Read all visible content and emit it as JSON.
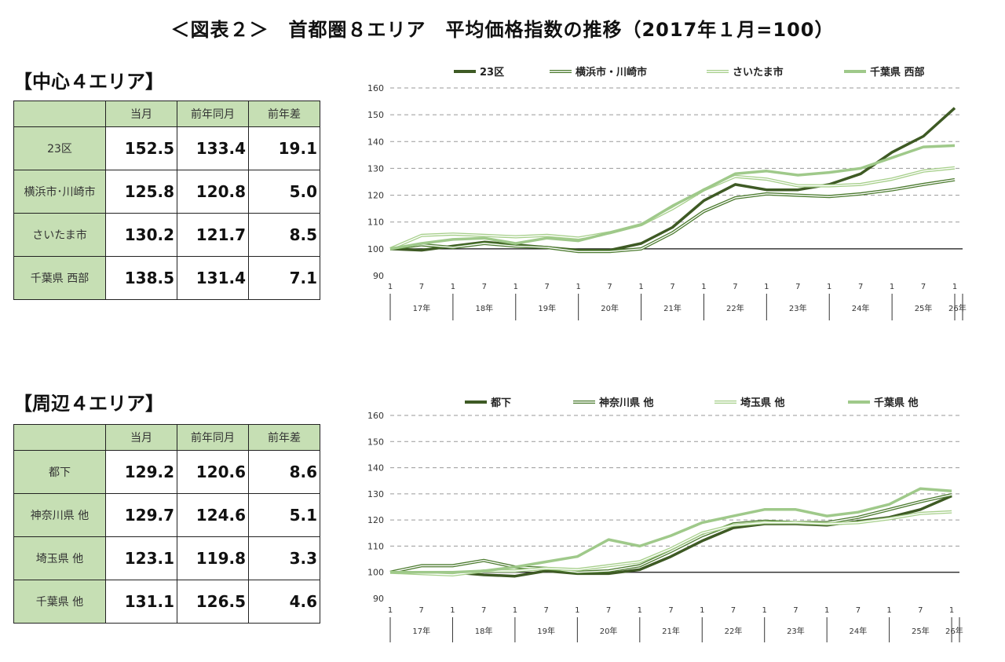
{
  "page": {
    "title": "＜図表２＞　首都圏８エリア　平均価格指数の推移（2017年１月=100）"
  },
  "tables": [
    {
      "heading": "【中心４エリア】",
      "columns": [
        "当月",
        "前年同月",
        "前年差"
      ],
      "rows": [
        {
          "label": "23区",
          "values": [
            "152.5",
            "133.4",
            "19.1"
          ]
        },
        {
          "label": "横浜市･川崎市",
          "values": [
            "125.8",
            "120.8",
            "5.0"
          ]
        },
        {
          "label": "さいたま市",
          "values": [
            "130.2",
            "121.7",
            "8.5"
          ]
        },
        {
          "label": "千葉県 西部",
          "values": [
            "138.5",
            "131.4",
            "7.1"
          ]
        }
      ]
    },
    {
      "heading": "【周辺４エリア】",
      "columns": [
        "当月",
        "前年同月",
        "前年差"
      ],
      "rows": [
        {
          "label": "都下",
          "values": [
            "129.2",
            "120.6",
            "8.6"
          ]
        },
        {
          "label": "神奈川県 他",
          "values": [
            "129.7",
            "124.6",
            "5.1"
          ]
        },
        {
          "label": "埼玉県 他",
          "values": [
            "123.1",
            "119.8",
            "3.3"
          ]
        },
        {
          "label": "千葉県 他",
          "values": [
            "131.1",
            "126.5",
            "4.6"
          ]
        }
      ]
    }
  ],
  "chart_data": [
    {
      "type": "line",
      "title": "",
      "xlabel": "",
      "ylabel": "",
      "ylim": [
        90,
        160
      ],
      "yticks": [
        90,
        100,
        110,
        120,
        130,
        140,
        150,
        160
      ],
      "grid": "horizontal dashed",
      "reference_line": 100,
      "legend_position": "top",
      "x_month_ticks": [
        "1",
        "7"
      ],
      "x_last_tick": "1",
      "x_years": [
        "17年",
        "18年",
        "19年",
        "20年",
        "21年",
        "22年",
        "23年",
        "24年",
        "25年",
        "26年"
      ],
      "x": [
        "2017-01",
        "2017-07",
        "2018-01",
        "2018-07",
        "2019-01",
        "2019-07",
        "2020-01",
        "2020-07",
        "2021-01",
        "2021-07",
        "2022-01",
        "2022-07",
        "2023-01",
        "2023-07",
        "2024-01",
        "2024-07",
        "2025-01",
        "2025-07",
        "2026-01"
      ],
      "series": [
        {
          "name": "23区",
          "style": "thick",
          "color": "#3e5a24",
          "values": [
            100,
            99.5,
            101,
            102.5,
            101.5,
            100.5,
            99.5,
            99.5,
            102,
            108,
            118,
            124,
            122,
            122,
            124,
            128,
            136,
            142,
            152.5
          ]
        },
        {
          "name": "横浜市・川崎市",
          "style": "double",
          "color": "#4b7a2e",
          "values": [
            100,
            101.5,
            100.5,
            102,
            101,
            100.5,
            99,
            99,
            100,
            106,
            114,
            119,
            120.5,
            120,
            119.5,
            120.5,
            122,
            124,
            125.8
          ]
        },
        {
          "name": "さいたま市",
          "style": "double",
          "color": "#a6cf8a",
          "values": [
            100,
            105,
            105.5,
            105,
            104.5,
            105,
            104,
            106,
            109,
            115,
            122,
            127,
            126,
            123.5,
            123.5,
            124,
            126,
            129,
            130.2
          ]
        },
        {
          "name": "千葉県 西部",
          "style": "thick",
          "color": "#9fc98a",
          "values": [
            100,
            102,
            103.5,
            104,
            102,
            104,
            103,
            106,
            109,
            116,
            122,
            128,
            129,
            127.5,
            128.5,
            130,
            134,
            138,
            138.5
          ]
        }
      ]
    },
    {
      "type": "line",
      "title": "",
      "xlabel": "",
      "ylabel": "",
      "ylim": [
        90,
        160
      ],
      "yticks": [
        90,
        100,
        110,
        120,
        130,
        140,
        150,
        160
      ],
      "grid": "horizontal dashed",
      "reference_line": 100,
      "legend_position": "top",
      "x_month_ticks": [
        "1",
        "7"
      ],
      "x_last_tick": "1",
      "x_years": [
        "17年",
        "18年",
        "19年",
        "20年",
        "21年",
        "22年",
        "23年",
        "24年",
        "25年",
        "26年"
      ],
      "x": [
        "2017-01",
        "2017-07",
        "2018-01",
        "2018-07",
        "2019-01",
        "2019-07",
        "2020-01",
        "2020-07",
        "2021-01",
        "2021-07",
        "2022-01",
        "2022-07",
        "2023-01",
        "2023-07",
        "2024-01",
        "2024-07",
        "2025-01",
        "2025-07",
        "2026-01"
      ],
      "series": [
        {
          "name": "都下",
          "style": "thick",
          "color": "#3e5a24",
          "values": [
            100,
            100,
            100,
            99,
            98.5,
            100.5,
            99.5,
            99.5,
            101,
            106,
            112,
            117,
            118.5,
            118.5,
            118,
            119.5,
            121,
            124,
            129.2
          ]
        },
        {
          "name": "神奈川県 他",
          "style": "double",
          "color": "#4b7a2e",
          "values": [
            100,
            102.5,
            102.5,
            104.5,
            102,
            101.5,
            100,
            100.5,
            102.5,
            108,
            114,
            118.5,
            119.5,
            119,
            119,
            121,
            124,
            127,
            129.7
          ]
        },
        {
          "name": "埼玉県 他",
          "style": "double",
          "color": "#a6cf8a",
          "values": [
            100,
            99.5,
            99,
            100.5,
            100.5,
            101.5,
            101,
            102.5,
            104,
            109,
            115,
            118,
            119,
            119,
            118.5,
            119,
            120.5,
            122.5,
            123.1
          ]
        },
        {
          "name": "千葉県 他",
          "style": "thick",
          "color": "#9fc98a",
          "values": [
            100,
            100,
            100,
            100.5,
            102,
            104,
            106,
            112.5,
            110,
            114,
            119,
            121.5,
            124,
            124,
            121.5,
            123,
            126,
            132,
            131.1
          ]
        }
      ]
    }
  ]
}
